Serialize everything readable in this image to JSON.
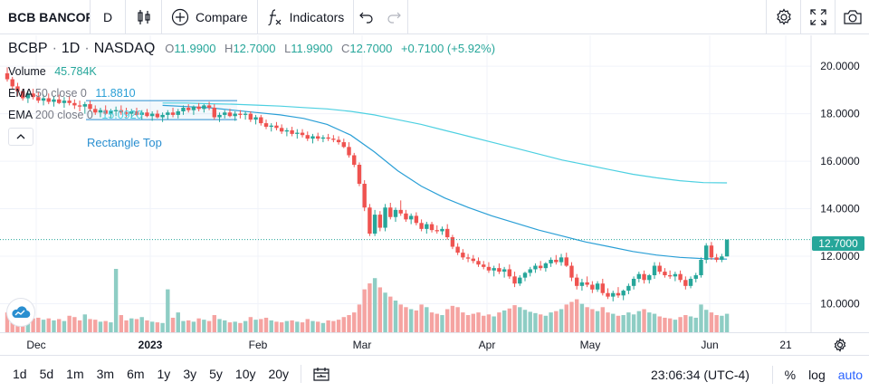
{
  "toolbar": {
    "symbol": "BCB BANCORP",
    "interval": "D",
    "compare_label": "Compare",
    "indicators_label": "Indicators"
  },
  "legend": {
    "ticker": "BCBP",
    "interval": "1D",
    "exchange": "NASDAQ",
    "o_key": "O",
    "o": "11.9900",
    "h_key": "H",
    "h": "12.7000",
    "l_key": "L",
    "l": "11.9900",
    "c_key": "C",
    "c": "12.7000",
    "change": "+0.7100 (+5.92%)",
    "volume_label": "Volume",
    "volume_value": "45.784K",
    "ema50_label": "EMA",
    "ema50_params": "50 close 0",
    "ema50_value": "11.8810",
    "ema200_label": "EMA",
    "ema200_params": "200 close 0",
    "ema200_value": "15.0920",
    "rectangle_label": "Rectangle Top"
  },
  "price_axis": {
    "labels": [
      "20.0000",
      "18.0000",
      "16.0000",
      "14.0000",
      "12.0000",
      "10.0000"
    ],
    "current_price": "12.7000"
  },
  "time_axis": {
    "labels": [
      "Dec",
      "2023",
      "Feb",
      "Mar",
      "Apr",
      "May",
      "Jun",
      "21"
    ]
  },
  "bottom_bar": {
    "ranges": [
      "1d",
      "5d",
      "1m",
      "3m",
      "6m",
      "1y",
      "3y",
      "5y",
      "10y",
      "20y"
    ],
    "clock": "23:06:34 (UTC-4)",
    "percent": "%",
    "log": "log",
    "auto": "auto"
  },
  "colors": {
    "up": "#26a69a",
    "down": "#ef5350",
    "up_volume": "#8ecdc4",
    "down_volume": "#f5a3a1",
    "ema50": "#2a9fd6",
    "ema200": "#4dd0e1",
    "rectangle": "#2a8fd0",
    "price_line": "#26a69a"
  },
  "chart_data": {
    "type": "candlestick",
    "symbol": "BCBP",
    "ylim": [
      8.8,
      21.3
    ],
    "y_ticks": [
      10,
      12,
      14,
      16,
      18,
      20
    ],
    "x_labels": [
      "Dec",
      "2023",
      "Feb",
      "Mar",
      "Apr",
      "May",
      "Jun",
      "21"
    ],
    "candles": [
      [
        19.7,
        19.95,
        19.35,
        19.45,
        300
      ],
      [
        19.45,
        19.55,
        19.05,
        19.15,
        280
      ],
      [
        19.15,
        19.3,
        18.75,
        18.95,
        260
      ],
      [
        18.95,
        19.05,
        18.55,
        18.65,
        230
      ],
      [
        18.65,
        18.95,
        18.45,
        18.85,
        200
      ],
      [
        18.85,
        19.05,
        18.6,
        18.7,
        210
      ],
      [
        18.7,
        18.9,
        18.45,
        18.55,
        220
      ],
      [
        18.55,
        18.8,
        18.35,
        18.65,
        190
      ],
      [
        18.65,
        18.85,
        18.4,
        18.5,
        210
      ],
      [
        18.5,
        18.75,
        18.3,
        18.6,
        180
      ],
      [
        18.6,
        18.8,
        18.4,
        18.45,
        200
      ],
      [
        18.45,
        18.7,
        18.25,
        18.55,
        170
      ],
      [
        18.55,
        18.75,
        18.35,
        18.45,
        250
      ],
      [
        18.45,
        18.6,
        18.2,
        18.35,
        230
      ],
      [
        18.35,
        18.55,
        18.1,
        18.3,
        180
      ],
      [
        18.3,
        18.5,
        18.0,
        18.4,
        270
      ],
      [
        18.4,
        18.55,
        18.1,
        18.2,
        200
      ],
      [
        18.2,
        18.35,
        17.95,
        18.05,
        190
      ],
      [
        18.05,
        18.25,
        17.85,
        18.15,
        160
      ],
      [
        18.15,
        18.35,
        17.95,
        18.0,
        170
      ],
      [
        18.0,
        18.2,
        17.8,
        18.1,
        150
      ],
      [
        18.1,
        18.3,
        17.9,
        18.15,
        960
      ],
      [
        18.15,
        18.35,
        17.95,
        18.05,
        260
      ],
      [
        18.05,
        18.25,
        17.85,
        18.0,
        180
      ],
      [
        18.0,
        18.2,
        17.8,
        18.1,
        210
      ],
      [
        18.1,
        18.25,
        17.9,
        17.95,
        200
      ],
      [
        17.95,
        18.15,
        17.75,
        18.05,
        230
      ],
      [
        18.05,
        18.2,
        17.85,
        17.9,
        180
      ],
      [
        17.9,
        18.1,
        17.7,
        18.0,
        160
      ],
      [
        18.0,
        18.15,
        17.8,
        17.85,
        150
      ],
      [
        17.85,
        18.05,
        17.65,
        17.95,
        140
      ],
      [
        17.95,
        18.15,
        17.75,
        18.05,
        650
      ],
      [
        18.05,
        18.25,
        17.85,
        17.95,
        220
      ],
      [
        17.95,
        18.2,
        17.8,
        18.1,
        300
      ],
      [
        18.1,
        18.35,
        17.95,
        18.25,
        170
      ],
      [
        18.25,
        18.4,
        18.05,
        18.15,
        180
      ],
      [
        18.15,
        18.35,
        17.95,
        18.3,
        160
      ],
      [
        18.3,
        18.45,
        18.1,
        18.2,
        210
      ],
      [
        18.2,
        18.4,
        18.05,
        18.35,
        190
      ],
      [
        18.35,
        18.5,
        18.15,
        18.25,
        170
      ],
      [
        18.25,
        18.4,
        17.75,
        17.85,
        260
      ],
      [
        17.85,
        18.05,
        17.65,
        17.95,
        200
      ],
      [
        17.95,
        18.15,
        17.8,
        18.05,
        180
      ],
      [
        18.05,
        18.2,
        17.85,
        17.9,
        150
      ],
      [
        17.9,
        18.1,
        17.7,
        18.0,
        160
      ],
      [
        18.0,
        18.15,
        17.8,
        17.95,
        140
      ],
      [
        17.95,
        18.1,
        17.75,
        18.0,
        170
      ],
      [
        18.0,
        18.1,
        17.65,
        17.75,
        230
      ],
      [
        17.75,
        17.95,
        17.55,
        17.85,
        190
      ],
      [
        17.85,
        17.95,
        17.5,
        17.6,
        200
      ],
      [
        17.6,
        17.75,
        17.35,
        17.45,
        220
      ],
      [
        17.45,
        17.6,
        17.25,
        17.5,
        180
      ],
      [
        17.5,
        17.65,
        17.3,
        17.4,
        160
      ],
      [
        17.4,
        17.55,
        17.15,
        17.25,
        150
      ],
      [
        17.25,
        17.4,
        17.05,
        17.3,
        170
      ],
      [
        17.3,
        17.45,
        17.05,
        17.15,
        180
      ],
      [
        17.15,
        17.35,
        16.95,
        17.2,
        160
      ],
      [
        17.2,
        17.35,
        17.0,
        17.1,
        150
      ],
      [
        17.1,
        17.25,
        16.85,
        16.95,
        200
      ],
      [
        16.95,
        17.15,
        16.75,
        17.05,
        170
      ],
      [
        17.05,
        17.2,
        16.85,
        16.95,
        160
      ],
      [
        16.95,
        17.1,
        16.8,
        17.0,
        140
      ],
      [
        17.0,
        17.15,
        16.85,
        16.95,
        180
      ],
      [
        16.95,
        17.1,
        16.8,
        16.9,
        170
      ],
      [
        16.9,
        17.05,
        16.7,
        16.8,
        190
      ],
      [
        16.8,
        16.95,
        16.55,
        16.6,
        230
      ],
      [
        16.6,
        16.8,
        16.15,
        16.25,
        260
      ],
      [
        16.25,
        16.35,
        15.75,
        15.85,
        300
      ],
      [
        15.85,
        15.95,
        14.95,
        15.05,
        420
      ],
      [
        15.05,
        15.2,
        13.9,
        14.05,
        650
      ],
      [
        14.05,
        14.2,
        12.85,
        12.95,
        740
      ],
      [
        12.95,
        13.95,
        12.85,
        13.75,
        820
      ],
      [
        13.75,
        13.9,
        13.05,
        13.2,
        680
      ],
      [
        13.2,
        14.2,
        13.05,
        14.05,
        600
      ],
      [
        14.05,
        14.25,
        13.55,
        13.65,
        540
      ],
      [
        13.65,
        14.05,
        13.45,
        13.95,
        480
      ],
      [
        13.95,
        14.35,
        13.7,
        13.8,
        420
      ],
      [
        13.8,
        13.95,
        13.45,
        13.55,
        380
      ],
      [
        13.55,
        13.8,
        13.35,
        13.7,
        350
      ],
      [
        13.7,
        13.85,
        13.3,
        13.4,
        330
      ],
      [
        13.4,
        13.55,
        13.05,
        13.15,
        420
      ],
      [
        13.15,
        13.45,
        12.95,
        13.35,
        380
      ],
      [
        13.35,
        13.45,
        13.0,
        13.1,
        300
      ],
      [
        13.1,
        13.3,
        12.95,
        13.05,
        280
      ],
      [
        13.05,
        13.25,
        12.9,
        13.15,
        260
      ],
      [
        13.15,
        13.35,
        12.7,
        12.8,
        350
      ],
      [
        12.8,
        12.9,
        12.3,
        12.4,
        400
      ],
      [
        12.4,
        12.55,
        12.05,
        12.15,
        380
      ],
      [
        12.15,
        12.3,
        11.85,
        11.95,
        300
      ],
      [
        11.95,
        12.1,
        11.75,
        11.9,
        260
      ],
      [
        11.9,
        12.05,
        11.7,
        11.8,
        280
      ],
      [
        11.8,
        11.95,
        11.55,
        11.65,
        300
      ],
      [
        11.65,
        11.8,
        11.45,
        11.55,
        250
      ],
      [
        11.55,
        11.75,
        11.3,
        11.4,
        270
      ],
      [
        11.4,
        11.6,
        11.15,
        11.5,
        240
      ],
      [
        11.5,
        11.7,
        11.25,
        11.35,
        300
      ],
      [
        11.35,
        11.55,
        11.1,
        11.45,
        330
      ],
      [
        11.45,
        11.65,
        11.05,
        11.15,
        360
      ],
      [
        11.15,
        11.35,
        10.7,
        10.85,
        410
      ],
      [
        10.85,
        11.2,
        10.75,
        11.1,
        380
      ],
      [
        11.1,
        11.35,
        10.95,
        11.3,
        340
      ],
      [
        11.3,
        11.55,
        11.15,
        11.45,
        310
      ],
      [
        11.45,
        11.7,
        11.3,
        11.6,
        290
      ],
      [
        11.6,
        11.8,
        11.4,
        11.5,
        270
      ],
      [
        11.5,
        11.75,
        11.35,
        11.7,
        250
      ],
      [
        11.7,
        11.95,
        11.55,
        11.85,
        300
      ],
      [
        11.85,
        12.05,
        11.65,
        11.75,
        320
      ],
      [
        11.75,
        12.1,
        11.6,
        11.95,
        350
      ],
      [
        11.95,
        12.15,
        11.55,
        11.6,
        420
      ],
      [
        11.6,
        11.75,
        10.95,
        11.1,
        460
      ],
      [
        11.1,
        11.25,
        10.6,
        10.75,
        500
      ],
      [
        10.75,
        11.05,
        10.55,
        10.9,
        430
      ],
      [
        10.9,
        11.15,
        10.7,
        10.8,
        380
      ],
      [
        10.8,
        10.95,
        10.45,
        10.6,
        350
      ],
      [
        10.6,
        10.95,
        10.5,
        10.85,
        320
      ],
      [
        10.85,
        11.05,
        10.35,
        10.45,
        380
      ],
      [
        10.45,
        10.65,
        10.2,
        10.3,
        300
      ],
      [
        10.3,
        10.55,
        10.1,
        10.45,
        280
      ],
      [
        10.45,
        10.7,
        10.25,
        10.35,
        250
      ],
      [
        10.35,
        10.6,
        10.15,
        10.55,
        260
      ],
      [
        10.55,
        10.85,
        10.4,
        10.75,
        300
      ],
      [
        10.75,
        11.15,
        10.6,
        11.05,
        270
      ],
      [
        11.05,
        11.35,
        10.9,
        11.25,
        320
      ],
      [
        11.25,
        11.4,
        10.85,
        11.0,
        350
      ],
      [
        11.0,
        11.25,
        10.85,
        11.2,
        300
      ],
      [
        11.2,
        11.75,
        11.05,
        11.6,
        280
      ],
      [
        11.6,
        11.75,
        11.25,
        11.35,
        240
      ],
      [
        11.35,
        11.5,
        11.1,
        11.2,
        220
      ],
      [
        11.2,
        11.4,
        11.05,
        11.15,
        210
      ],
      [
        11.15,
        11.35,
        10.95,
        11.25,
        190
      ],
      [
        11.25,
        11.4,
        10.9,
        11.0,
        230
      ],
      [
        11.0,
        11.15,
        10.6,
        10.75,
        260
      ],
      [
        10.75,
        11.15,
        10.65,
        11.05,
        240
      ],
      [
        11.05,
        11.3,
        10.9,
        11.2,
        220
      ],
      [
        11.2,
        11.95,
        11.1,
        11.85,
        420
      ],
      [
        11.85,
        12.55,
        11.7,
        12.45,
        340
      ],
      [
        12.45,
        12.6,
        11.85,
        11.95,
        300
      ],
      [
        11.95,
        12.1,
        11.75,
        11.85,
        260
      ],
      [
        11.85,
        12.1,
        11.75,
        11.99,
        250
      ],
      [
        11.99,
        12.7,
        11.99,
        12.7,
        280
      ]
    ],
    "ema50": [
      18.35,
      18.3,
      18.25,
      18.15,
      18.05,
      17.95,
      17.8,
      17.55,
      17.1,
      16.4,
      15.6,
      14.95,
      14.45,
      14.05,
      13.7,
      13.4,
      13.1,
      12.85,
      12.6,
      12.4,
      12.2,
      12.05,
      11.95,
      11.9,
      11.88
    ],
    "ema200": [
      18.45,
      18.45,
      18.42,
      18.4,
      18.36,
      18.32,
      18.26,
      18.2,
      18.1,
      17.95,
      17.75,
      17.55,
      17.3,
      17.05,
      16.8,
      16.55,
      16.3,
      16.05,
      15.85,
      15.65,
      15.45,
      15.3,
      15.18,
      15.1,
      15.09
    ],
    "rectangle": {
      "label": "Rectangle Top",
      "top": 18.55,
      "bottom": 17.75
    }
  }
}
